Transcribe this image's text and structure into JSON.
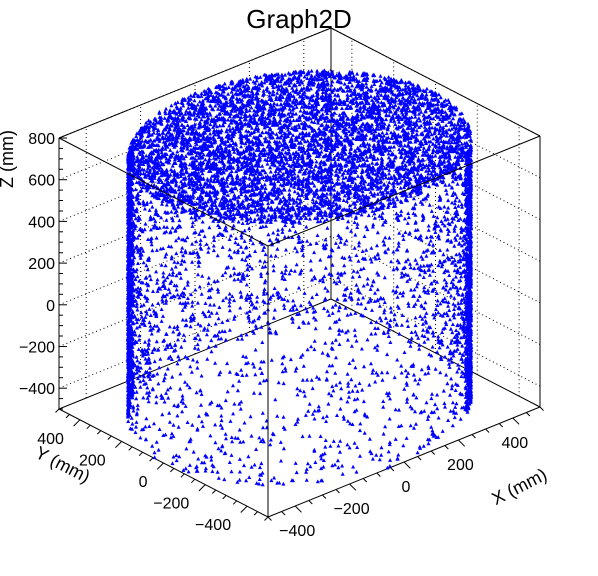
{
  "chart_data": {
    "type": "scatter",
    "title": "Graph2D",
    "xlabel": "X (mm)",
    "ylabel": "Y (mm)",
    "zlabel": "Z (mm)",
    "xlim": [
      -500,
      500
    ],
    "ylim": [
      -500,
      500
    ],
    "zlim": [
      -500,
      800
    ],
    "x_ticks": [
      -400,
      -200,
      0,
      200,
      400
    ],
    "y_ticks": [
      -400,
      -200,
      0,
      200,
      400
    ],
    "z_ticks": [
      -400,
      -200,
      0,
      200,
      400,
      600,
      800
    ],
    "marker_color": "#0000ff",
    "marker": "triangle",
    "grid": true,
    "shape": "cylinder",
    "cylinder": {
      "radius_mm": 500,
      "z_bottom_mm": -500,
      "z_top_mm": 750
    }
  }
}
